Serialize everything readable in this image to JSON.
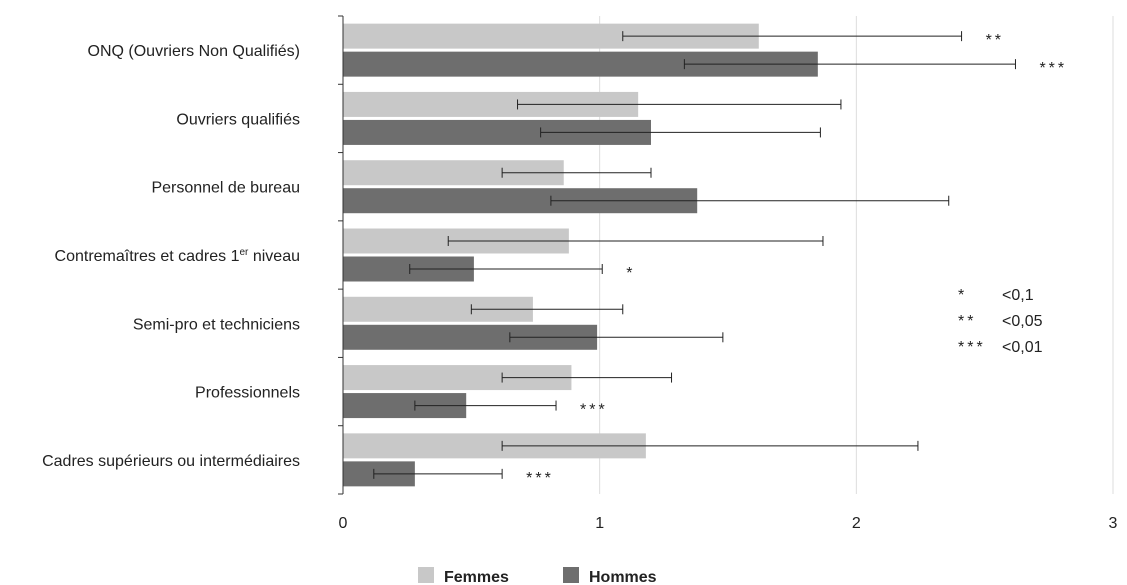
{
  "chart_data": {
    "type": "bar",
    "orientation": "horizontal",
    "categories": [
      "ONQ (Ouvriers Non Qualifiés)",
      "Ouvriers qualifiés",
      "Personnel de bureau",
      "Contremaîtres et cadres 1er niveau",
      "Semi-pro et techniciens",
      "Professionnels",
      "Cadres supérieurs ou intermédiaires"
    ],
    "category_label_parts": [
      null,
      null,
      null,
      {
        "before": "Contremaîtres et cadres 1",
        "sup": "er",
        "after": " niveau"
      },
      null,
      null,
      null
    ],
    "series": [
      {
        "name": "Femmes",
        "color": "#c8c8c8",
        "values": [
          1.62,
          1.15,
          0.86,
          0.88,
          0.74,
          0.89,
          1.18
        ],
        "ci_low": [
          1.09,
          0.68,
          0.62,
          0.41,
          0.5,
          0.62,
          0.62
        ],
        "ci_high": [
          2.41,
          1.94,
          1.2,
          1.87,
          1.09,
          1.28,
          2.24
        ],
        "significance": [
          "**",
          "",
          "",
          "",
          "",
          "",
          ""
        ]
      },
      {
        "name": "Hommes",
        "color": "#6e6e6e",
        "values": [
          1.85,
          1.2,
          1.38,
          0.51,
          0.99,
          0.48,
          0.28
        ],
        "ci_low": [
          1.33,
          0.77,
          0.81,
          0.26,
          0.65,
          0.28,
          0.12
        ],
        "ci_high": [
          2.62,
          1.86,
          2.36,
          1.01,
          1.48,
          0.83,
          0.62
        ],
        "significance": [
          "***",
          "",
          "",
          "*",
          "",
          "***",
          "***"
        ]
      }
    ],
    "xlim": [
      0,
      3
    ],
    "xticks": [
      0,
      1,
      2,
      3
    ],
    "xtick_labels": [
      "0",
      "1",
      "2",
      "3"
    ],
    "grid": true,
    "legend": "bottom-center",
    "significance_legend": [
      {
        "stars": "*",
        "label": "<0,1"
      },
      {
        "stars": "**",
        "label": "<0,05"
      },
      {
        "stars": "***",
        "label": "<0,01"
      }
    ]
  }
}
